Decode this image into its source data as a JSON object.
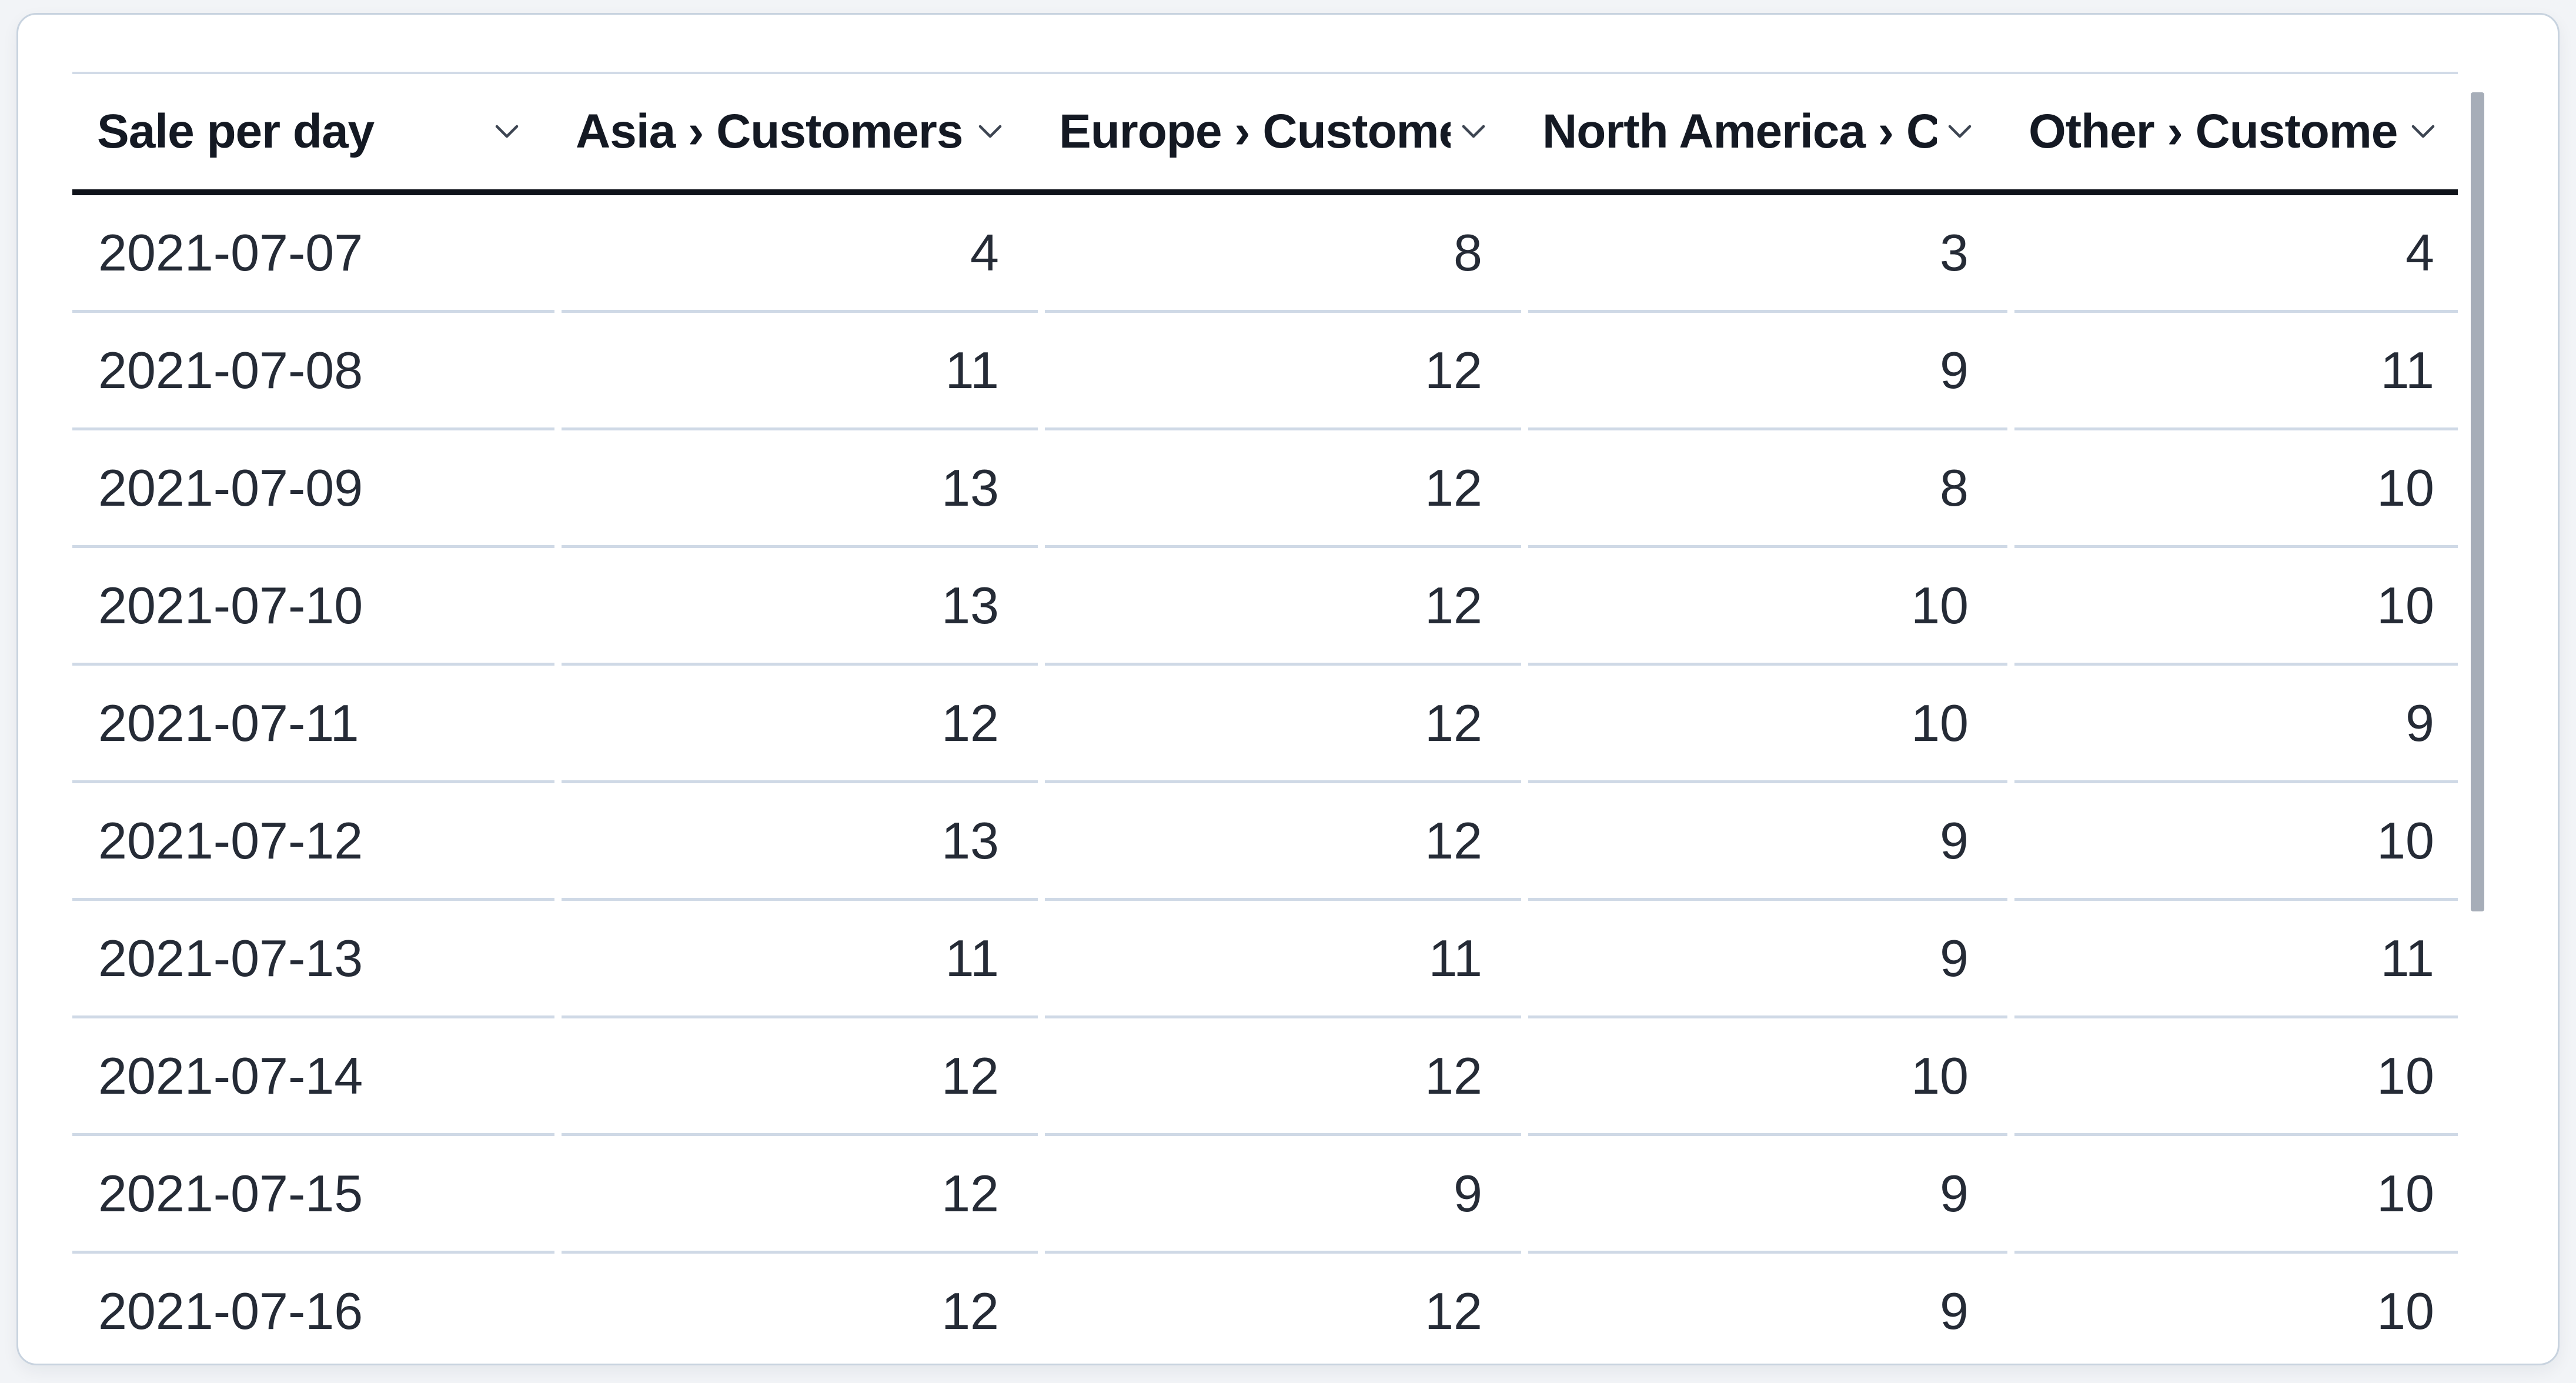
{
  "chart_data": {
    "type": "table",
    "title": "Sale per day",
    "columns": [
      {
        "label": "Sale per day",
        "align": "left",
        "sortable": true
      },
      {
        "label": "Asia › Customers",
        "align": "right",
        "sortable": true
      },
      {
        "label": "Europe › Customers",
        "align": "right",
        "sortable": true
      },
      {
        "label": "North America › Customers",
        "align": "right",
        "sortable": true
      },
      {
        "label": "Other › Customers",
        "align": "right",
        "sortable": true
      }
    ],
    "rows": [
      {
        "date": "2021-07-07",
        "values": [
          "4",
          "8",
          "3",
          "4"
        ]
      },
      {
        "date": "2021-07-08",
        "values": [
          "11",
          "12",
          "9",
          "11"
        ]
      },
      {
        "date": "2021-07-09",
        "values": [
          "13",
          "12",
          "8",
          "10"
        ]
      },
      {
        "date": "2021-07-10",
        "values": [
          "13",
          "12",
          "10",
          "10"
        ]
      },
      {
        "date": "2021-07-11",
        "values": [
          "12",
          "12",
          "10",
          "9"
        ]
      },
      {
        "date": "2021-07-12",
        "values": [
          "13",
          "12",
          "9",
          "10"
        ]
      },
      {
        "date": "2021-07-13",
        "values": [
          "11",
          "11",
          "9",
          "11"
        ]
      },
      {
        "date": "2021-07-14",
        "values": [
          "12",
          "12",
          "10",
          "10"
        ]
      },
      {
        "date": "2021-07-15",
        "values": [
          "12",
          "9",
          "9",
          "10"
        ]
      },
      {
        "date": "2021-07-16",
        "values": [
          "12",
          "12",
          "9",
          "10"
        ]
      }
    ]
  },
  "icons": {
    "sort_chevron": "chevron-down-icon"
  },
  "scrollbar": {
    "orientation": "vertical",
    "visible": true
  },
  "colors": {
    "card_background": "#ffffff",
    "card_border": "#c8d3df",
    "page_background": "#f2f4f7",
    "header_text": "#141923",
    "cell_text": "#252b36",
    "header_underline": "#0f131a",
    "row_separator": "#cfd9e6",
    "scrollbar_thumb": "#a6adb8"
  }
}
